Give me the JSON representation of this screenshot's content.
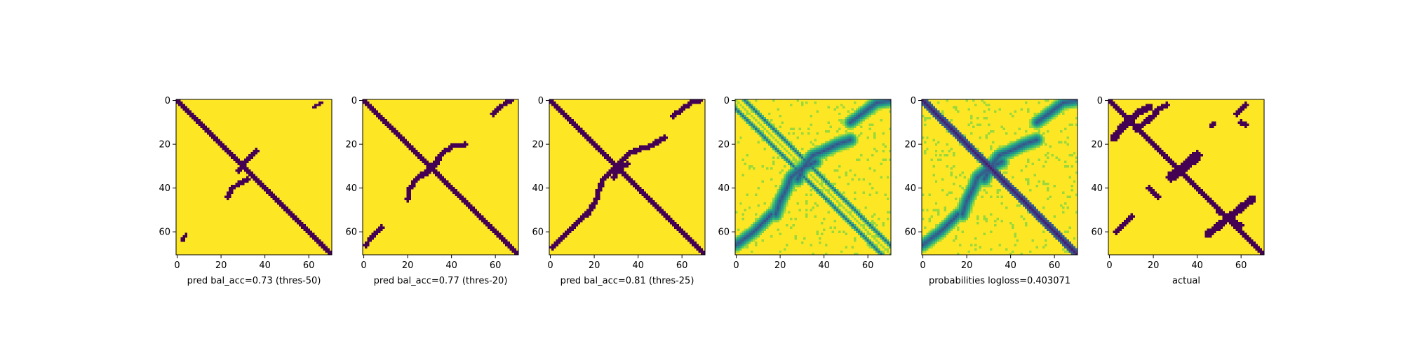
{
  "colors": {
    "background": "#ffffff",
    "low_purple": "#440154",
    "high_yellow": "#fde725",
    "axis": "#000000"
  },
  "chart_data": [
    {
      "type": "heatmap",
      "xlabel": "pred bal_acc=0.73 (thres-50)",
      "ylabel": "",
      "matrix_size": 71,
      "colormap": "viridis-binary",
      "xticks": [
        0,
        20,
        40,
        60
      ],
      "yticks": [
        0,
        20,
        40,
        60
      ],
      "xlim": [
        0,
        71
      ],
      "ylim": [
        71,
        0
      ],
      "pattern": {
        "diagonal_halfwidth": 1.3,
        "arcs": [
          {
            "x": [
              28,
              31,
              33,
              36
            ],
            "y": [
              32,
              28,
              26,
              23
            ],
            "w": 1.0
          },
          {
            "x": [
              32,
              28,
              25,
              23
            ],
            "y": [
              36,
              38,
              40,
              44
            ],
            "w": 1.0
          },
          {
            "x": [
              62,
              64,
              66
            ],
            "y": [
              3,
              2,
              1
            ],
            "w": 0.8
          },
          {
            "x": [
              2,
              3,
              4
            ],
            "y": [
              64,
              63,
              61
            ],
            "w": 0.8
          }
        ]
      }
    },
    {
      "type": "heatmap",
      "xlabel": "pred bal_acc=0.77 (thres-20)",
      "ylabel": "",
      "matrix_size": 71,
      "colormap": "viridis-binary",
      "xticks": [
        0,
        20,
        40,
        60
      ],
      "yticks": [
        0,
        20,
        40,
        60
      ],
      "xlim": [
        0,
        71
      ],
      "ylim": [
        71,
        0
      ],
      "pattern": {
        "diagonal_halfwidth": 1.6,
        "arcs": [
          {
            "x": [
              29,
              32,
              36,
              40,
              46
            ],
            "y": [
              33,
              29,
              24,
              21,
              20
            ],
            "w": 1.1
          },
          {
            "x": [
              33,
              29,
              24,
              21,
              20
            ],
            "y": [
              29,
              32,
              36,
              40,
              45
            ],
            "w": 1.1
          },
          {
            "x": [
              59,
              62,
              65,
              67
            ],
            "y": [
              6,
              3,
              1,
              0
            ],
            "w": 1.0
          },
          {
            "x": [
              1,
              3,
              6,
              8
            ],
            "y": [
              66,
              63,
              60,
              58
            ],
            "w": 1.0
          }
        ]
      }
    },
    {
      "type": "heatmap",
      "xlabel": "pred bal_acc=0.81 (thres-25)",
      "ylabel": "",
      "matrix_size": 71,
      "colormap": "viridis-binary",
      "xticks": [
        0,
        20,
        40,
        60
      ],
      "yticks": [
        0,
        20,
        40,
        60
      ],
      "xlim": [
        0,
        71
      ],
      "ylim": [
        71,
        0
      ],
      "pattern": {
        "diagonal_halfwidth": 1.9,
        "arcs": [
          {
            "x": [
              29,
              32,
              36,
              41,
              45,
              52
            ],
            "y": [
              35,
              28,
              24,
              22,
              21,
              17
            ],
            "w": 1.2
          },
          {
            "x": [
              35,
              28,
              24,
              22,
              21,
              17
            ],
            "y": [
              29,
              32,
              36,
              41,
              45,
              52
            ],
            "w": 1.2
          },
          {
            "x": [
              56,
              60,
              64,
              68
            ],
            "y": [
              7,
              4,
              1,
              0
            ],
            "w": 1.1
          },
          {
            "x": [
              1,
              4,
              8,
              12,
              16
            ],
            "y": [
              67,
              64,
              60,
              56,
              52
            ],
            "w": 1.1
          }
        ]
      }
    },
    {
      "type": "heatmap",
      "xlabel": "",
      "ylabel": "",
      "matrix_size": 71,
      "colormap": "viridis",
      "xticks": [
        0,
        20,
        40,
        60
      ],
      "yticks": [
        0,
        20,
        40,
        60
      ],
      "xlim": [
        0,
        71
      ],
      "ylim": [
        71,
        0
      ],
      "pattern": {
        "offdiag_lines": [
          -4,
          4
        ],
        "arcs": [
          {
            "x": [
              28,
              31,
              35,
              40,
              46,
              52
            ],
            "y": [
              36,
              30,
              25,
              23,
              20,
              18
            ],
            "w": 1.6
          },
          {
            "x": [
              36,
              30,
              25,
              23,
              20,
              18
            ],
            "y": [
              28,
              31,
              35,
              40,
              46,
              52
            ],
            "w": 1.6
          },
          {
            "x": [
              52,
              56,
              60,
              64,
              70
            ],
            "y": [
              10,
              7,
              4,
              1,
              0
            ],
            "w": 1.5
          },
          {
            "x": [
              0,
              4,
              8,
              12,
              16
            ],
            "y": [
              66,
              63,
              60,
              56,
              52
            ],
            "w": 1.5
          }
        ]
      }
    },
    {
      "type": "heatmap",
      "xlabel": "probabilities logloss=0.403071",
      "ylabel": "",
      "matrix_size": 71,
      "colormap": "viridis",
      "xticks": [
        0,
        20,
        40,
        60
      ],
      "yticks": [
        0,
        20,
        40,
        60
      ],
      "xlim": [
        0,
        71
      ],
      "ylim": [
        71,
        0
      ],
      "pattern": {
        "diagonal_halfwidth": 2.2,
        "arcs": [
          {
            "x": [
              28,
              31,
              35,
              40,
              46,
              52
            ],
            "y": [
              36,
              30,
              25,
              23,
              20,
              18
            ],
            "w": 1.6
          },
          {
            "x": [
              36,
              30,
              25,
              23,
              20,
              18
            ],
            "y": [
              28,
              31,
              35,
              40,
              46,
              52
            ],
            "w": 1.6
          },
          {
            "x": [
              52,
              56,
              60,
              64,
              70
            ],
            "y": [
              10,
              7,
              4,
              1,
              0
            ],
            "w": 1.5
          },
          {
            "x": [
              0,
              4,
              8,
              12,
              16
            ],
            "y": [
              66,
              63,
              60,
              56,
              52
            ],
            "w": 1.5
          }
        ]
      }
    },
    {
      "type": "heatmap",
      "xlabel": "actual",
      "ylabel": "",
      "matrix_size": 71,
      "colormap": "viridis-binary",
      "xticks": [
        0,
        20,
        40,
        60
      ],
      "yticks": [
        0,
        20,
        40,
        60
      ],
      "xlim": [
        0,
        71
      ],
      "ylim": [
        71,
        0
      ],
      "pattern": {
        "diagonal_halfwidth": 1.6,
        "arcs": [
          {
            "x": [
              2,
              6,
              10,
              14,
              18
            ],
            "y": [
              17,
              12,
              8,
              5,
              3
            ],
            "w": 1.6
          },
          {
            "x": [
              12,
              16,
              20,
              22,
              26
            ],
            "y": [
              13,
              10,
              7,
              4,
              2
            ],
            "w": 1.2
          },
          {
            "x": [
              28,
              33,
              37,
              40
            ],
            "y": [
              35,
              31,
              28,
              25
            ],
            "w": 2.2
          },
          {
            "x": [
              45,
              50,
              55,
              60,
              65
            ],
            "y": [
              61,
              57,
              53,
              49,
              45
            ],
            "w": 1.6
          },
          {
            "x": [
              50,
              55,
              60
            ],
            "y": [
              51,
              54,
              57
            ],
            "w": 1.2
          },
          {
            "x": [
              58,
              60,
              62
            ],
            "y": [
              6,
              4,
              2
            ],
            "w": 1.0
          },
          {
            "x": [
              46,
              48
            ],
            "y": [
              12,
              10
            ],
            "w": 0.9
          },
          {
            "x": [
              3,
              5,
              8,
              10
            ],
            "y": [
              60,
              58,
              55,
              53
            ],
            "w": 1.2
          },
          {
            "x": [
              18,
              20,
              22
            ],
            "y": [
              40,
              42,
              44
            ],
            "w": 1.0
          },
          {
            "x": [
              60,
              62
            ],
            "y": [
              10,
              11
            ],
            "w": 1.0
          }
        ]
      }
    }
  ]
}
